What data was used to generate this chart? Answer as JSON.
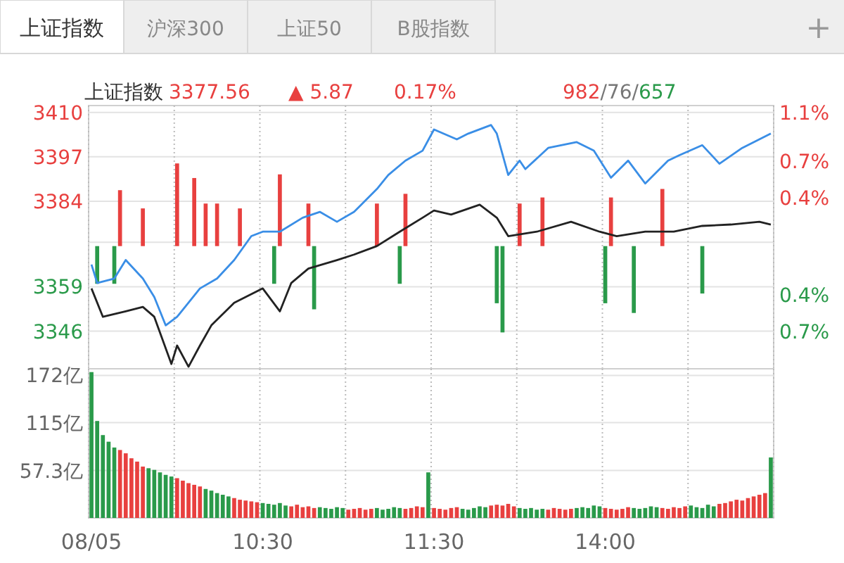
{
  "chart_data": [
    {
      "type": "other",
      "annotations": [
        "上证指数",
        "沪深300",
        "上证50",
        "B股指数",
        "+"
      ]
    },
    {
      "type": "line",
      "title": "上证指数",
      "annotations": [
        "3377.56",
        "▲ 5.87",
        "0.17%",
        "982/76/657"
      ],
      "categories": [
        null,
        null,
        null,
        null,
        null,
        null,
        null,
        null,
        null,
        null,
        null,
        null,
        null,
        null,
        null,
        null,
        null,
        null,
        null,
        null,
        null,
        null,
        null,
        null,
        null,
        null,
        null,
        null,
        null,
        null,
        null,
        null,
        null,
        null,
        null,
        null,
        null,
        null,
        null,
        null,
        null,
        null,
        null,
        null,
        null,
        null,
        null,
        null,
        null,
        null,
        null,
        null,
        null,
        null,
        null,
        null,
        null,
        null,
        null,
        null,
        null,
        null,
        null,
        null,
        null,
        null,
        null,
        null,
        null,
        null,
        null,
        null,
        null,
        null,
        null,
        null,
        null,
        null,
        null,
        null,
        null,
        null,
        null,
        null,
        null,
        null,
        null,
        null,
        null,
        null,
        null,
        null,
        null,
        null,
        null,
        null,
        null,
        null,
        null,
        null,
        null,
        null,
        null,
        null,
        null,
        null,
        null,
        null,
        null,
        null,
        null,
        null,
        null,
        null,
        null,
        null,
        null,
        null,
        null,
        null
      ],
      "tick_labels": "y",
      "grid": true,
      "ylim": [
        3335,
        3412
      ],
      "yticks": [
        3346,
        3359,
        {
          "value": 3372,
          "label": null
        },
        3384,
        3397,
        3410
      ],
      "y2lim": [
        -1.009,
        1.156
      ],
      "y2ticks": [
        {
          "value": -0.7,
          "label": "0.7%"
        },
        {
          "value": -0.4,
          "label": "0.4%"
        },
        {
          "value": 0.4,
          "label": "0.4%"
        },
        {
          "value": 0.7,
          "label": "0.7%"
        },
        {
          "value": 1.1,
          "label": "1.1%"
        }
      ],
      "series": [
        {
          "type": "bar",
          "axis": "y2",
          "color": "#e8403f",
          "values": [
            null,
            null,
            null,
            null,
            null,
            0.46,
            null,
            null,
            null,
            0.31,
            null,
            null,
            null,
            null,
            null,
            0.68,
            null,
            null,
            0.56,
            null,
            0.35,
            null,
            0.35,
            null,
            null,
            null,
            0.31,
            null,
            null,
            null,
            null,
            null,
            null,
            0.59,
            null,
            null,
            null,
            null,
            0.35,
            null,
            null,
            null,
            null,
            null,
            null,
            null,
            null,
            null,
            null,
            null,
            0.35,
            null,
            null,
            null,
            null,
            0.43,
            null,
            null,
            null,
            null,
            null,
            null,
            null,
            null,
            null,
            null,
            null,
            null,
            null,
            null,
            null,
            null,
            null,
            null,
            null,
            0.35,
            null,
            null,
            null,
            0.4,
            null,
            null,
            null,
            null,
            null,
            null,
            null,
            null,
            null,
            null,
            null,
            0.4,
            null,
            null,
            null,
            null,
            null,
            null,
            null,
            null,
            0.47,
            null,
            null,
            null,
            null,
            null,
            null,
            null,
            null,
            null,
            null,
            null,
            null,
            null,
            null,
            null,
            null,
            null,
            null,
            null
          ]
        },
        {
          "type": "bar",
          "axis": "y2",
          "color": "#2a9a4a",
          "values": [
            null,
            -0.31,
            null,
            null,
            -0.31,
            null,
            null,
            null,
            null,
            null,
            null,
            null,
            null,
            null,
            null,
            null,
            null,
            null,
            null,
            null,
            null,
            null,
            null,
            null,
            null,
            null,
            null,
            null,
            null,
            null,
            null,
            null,
            -0.31,
            null,
            null,
            null,
            null,
            null,
            null,
            -0.52,
            null,
            null,
            null,
            null,
            null,
            null,
            null,
            null,
            null,
            null,
            null,
            null,
            null,
            null,
            -0.31,
            null,
            null,
            null,
            null,
            null,
            null,
            null,
            null,
            null,
            null,
            null,
            null,
            null,
            null,
            null,
            null,
            -0.47,
            -0.71,
            null,
            null,
            null,
            null,
            null,
            null,
            null,
            null,
            null,
            null,
            null,
            null,
            null,
            null,
            null,
            null,
            null,
            -0.47,
            null,
            null,
            null,
            null,
            -0.55,
            null,
            null,
            null,
            null,
            null,
            null,
            null,
            null,
            null,
            null,
            null,
            -0.39,
            null,
            null,
            null,
            null,
            null,
            null,
            null,
            null,
            null,
            null,
            null,
            null
          ]
        },
        {
          "type": "line",
          "color": "#3a8ee6",
          "values": [
            3365.5,
            3360.1,
            null,
            null,
            3361.4,
            null,
            3366.8,
            null,
            null,
            3361.4,
            null,
            3356.0,
            null,
            3347.7,
            null,
            3350.2,
            null,
            null,
            null,
            3358.5,
            null,
            null,
            3361.4,
            null,
            null,
            3366.8,
            null,
            null,
            3373.8,
            null,
            3375.1,
            null,
            null,
            3375.1,
            null,
            null,
            null,
            3379.2,
            null,
            null,
            3380.9,
            null,
            null,
            3378.0,
            null,
            null,
            3380.9,
            null,
            null,
            null,
            3387.6,
            null,
            3391.7,
            null,
            null,
            3395.9,
            null,
            null,
            3398.8,
            null,
            3405.0,
            null,
            null,
            null,
            3402.1,
            null,
            3403.8,
            null,
            null,
            null,
            3406.3,
            3403.8,
            null,
            3391.7,
            null,
            3395.9,
            3393.4,
            null,
            null,
            null,
            3399.6,
            null,
            null,
            null,
            null,
            3401.3,
            null,
            null,
            3398.8,
            null,
            null,
            3390.9,
            null,
            null,
            3395.9,
            null,
            null,
            3389.2,
            null,
            null,
            null,
            3395.9,
            null,
            3397.5,
            null,
            null,
            null,
            3400.4,
            null,
            null,
            3395.0,
            null,
            null,
            null,
            3399.6,
            null,
            null,
            null,
            null,
            3403.8
          ]
        },
        {
          "type": "line",
          "color": "#222222",
          "values": [
            3358.5,
            null,
            3350.2,
            null,
            null,
            null,
            3351.8,
            null,
            null,
            3353.1,
            null,
            3350.2,
            null,
            null,
            3336.4,
            3341.8,
            null,
            3335.6,
            null,
            3341.8,
            null,
            3347.7,
            null,
            null,
            null,
            3354.3,
            null,
            null,
            null,
            null,
            3358.5,
            null,
            null,
            3351.8,
            null,
            3360.1,
            null,
            null,
            3364.3,
            null,
            null,
            null,
            null,
            3366.8,
            null,
            null,
            3368.4,
            null,
            null,
            null,
            3370.9,
            null,
            null,
            null,
            3375.1,
            null,
            null,
            null,
            3379.2,
            null,
            3381.3,
            null,
            null,
            3380.1,
            null,
            null,
            null,
            null,
            3383.0,
            null,
            null,
            3379.2,
            null,
            3373.8,
            null,
            null,
            null,
            null,
            3375.1,
            null,
            null,
            null,
            null,
            null,
            3378.0,
            null,
            null,
            null,
            null,
            3375.1,
            null,
            null,
            3373.8,
            null,
            null,
            null,
            null,
            3375.1,
            null,
            null,
            null,
            null,
            3375.1,
            null,
            null,
            null,
            null,
            3376.8,
            null,
            null,
            null,
            null,
            3377.2,
            null,
            null,
            null,
            null,
            3378.0,
            null,
            3377.2
          ]
        }
      ]
    },
    {
      "type": "bar",
      "categories": [
        "08/05",
        null,
        null,
        null,
        null,
        null,
        null,
        null,
        null,
        null,
        null,
        null,
        null,
        null,
        null,
        null,
        null,
        null,
        null,
        null,
        null,
        null,
        null,
        null,
        null,
        null,
        null,
        null,
        null,
        null,
        "10:30",
        null,
        null,
        null,
        null,
        null,
        null,
        null,
        null,
        null,
        null,
        null,
        null,
        null,
        null,
        null,
        null,
        null,
        null,
        null,
        null,
        null,
        null,
        null,
        null,
        null,
        null,
        null,
        null,
        null,
        "11:30",
        null,
        null,
        null,
        null,
        null,
        null,
        null,
        null,
        null,
        null,
        null,
        null,
        null,
        null,
        null,
        null,
        null,
        null,
        null,
        null,
        null,
        null,
        null,
        null,
        null,
        null,
        null,
        null,
        null,
        "14:00",
        null,
        null,
        null,
        null,
        null,
        null,
        null,
        null,
        null,
        null,
        null,
        null,
        null,
        null,
        null,
        null,
        null,
        null,
        null,
        null,
        null,
        null,
        null,
        null,
        null,
        null,
        null,
        null,
        null
      ],
      "grid": true,
      "ylim": [
        0,
        180
      ],
      "yticks": [
        {
          "value": 57.3,
          "label": "57.3亿"
        },
        {
          "value": 115,
          "label": "115亿"
        },
        {
          "value": 172,
          "label": "172亿"
        }
      ],
      "values": [
        176,
        117,
        100,
        92,
        85,
        82,
        78,
        72,
        68,
        62,
        60,
        58,
        55,
        52,
        50,
        48,
        45,
        42,
        40,
        38,
        35,
        33,
        30,
        28,
        26,
        24,
        22,
        21,
        20,
        19,
        18,
        17,
        16,
        18,
        15,
        14,
        16,
        13,
        14,
        12,
        13,
        12,
        11,
        13,
        12,
        10,
        11,
        12,
        10,
        11,
        12,
        10,
        11,
        13,
        12,
        11,
        12,
        14,
        13,
        55,
        12,
        11,
        10,
        12,
        13,
        11,
        10,
        12,
        14,
        13,
        15,
        16,
        15,
        17,
        14,
        12,
        11,
        12,
        10,
        11,
        10,
        12,
        11,
        10,
        11,
        12,
        13,
        12,
        15,
        14,
        12,
        11,
        10,
        11,
        13,
        12,
        11,
        12,
        14,
        13,
        12,
        11,
        13,
        12,
        14,
        15,
        13,
        12,
        16,
        14,
        17,
        18,
        20,
        22,
        21,
        24,
        26,
        28,
        30,
        73
      ],
      "colors": [
        "#2a9a4a",
        "#2a9a4a",
        "#2a9a4a",
        "#2a9a4a",
        "#2a9a4a",
        "#e8403f",
        "#e8403f",
        "#e8403f",
        "#e8403f",
        "#e8403f",
        "#2a9a4a",
        "#2a9a4a",
        "#2a9a4a",
        "#2a9a4a",
        "#2a9a4a",
        "#e8403f",
        "#e8403f",
        "#e8403f",
        "#e8403f",
        "#e8403f",
        "#2a9a4a",
        "#2a9a4a",
        "#2a9a4a",
        "#2a9a4a",
        "#2a9a4a",
        "#e8403f",
        "#e8403f",
        "#e8403f",
        "#e8403f",
        "#e8403f",
        "#2a9a4a",
        "#2a9a4a",
        "#2a9a4a",
        "#2a9a4a",
        "#2a9a4a",
        "#e8403f",
        "#e8403f",
        "#e8403f",
        "#e8403f",
        "#e8403f",
        "#2a9a4a",
        "#2a9a4a",
        "#2a9a4a",
        "#2a9a4a",
        "#2a9a4a",
        "#e8403f",
        "#e8403f",
        "#e8403f",
        "#e8403f",
        "#e8403f",
        "#2a9a4a",
        "#2a9a4a",
        "#2a9a4a",
        "#2a9a4a",
        "#2a9a4a",
        "#e8403f",
        "#e8403f",
        "#e8403f",
        "#e8403f",
        "#2a9a4a",
        "#e8403f",
        "#e8403f",
        "#e8403f",
        "#e8403f",
        "#e8403f",
        "#2a9a4a",
        "#2a9a4a",
        "#2a9a4a",
        "#2a9a4a",
        "#2a9a4a",
        "#e8403f",
        "#e8403f",
        "#e8403f",
        "#e8403f",
        "#e8403f",
        "#2a9a4a",
        "#2a9a4a",
        "#2a9a4a",
        "#2a9a4a",
        "#2a9a4a",
        "#e8403f",
        "#e8403f",
        "#e8403f",
        "#e8403f",
        "#e8403f",
        "#2a9a4a",
        "#2a9a4a",
        "#2a9a4a",
        "#2a9a4a",
        "#2a9a4a",
        "#e8403f",
        "#e8403f",
        "#e8403f",
        "#e8403f",
        "#e8403f",
        "#2a9a4a",
        "#2a9a4a",
        "#2a9a4a",
        "#2a9a4a",
        "#2a9a4a",
        "#e8403f",
        "#e8403f",
        "#e8403f",
        "#e8403f",
        "#e8403f",
        "#2a9a4a",
        "#2a9a4a",
        "#2a9a4a",
        "#2a9a4a",
        "#2a9a4a",
        "#e8403f",
        "#e8403f",
        "#e8403f",
        "#e8403f",
        "#e8403f",
        "#e8403f",
        "#e8403f",
        "#e8403f",
        "#e8403f",
        "#2a9a4a"
      ]
    }
  ]
}
